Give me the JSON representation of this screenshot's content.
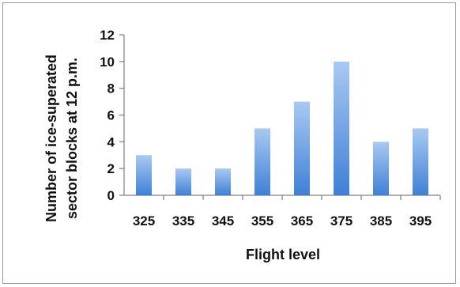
{
  "chart_data": {
    "type": "bar",
    "categories": [
      "325",
      "335",
      "345",
      "355",
      "365",
      "375",
      "385",
      "395"
    ],
    "values": [
      3,
      2,
      2,
      5,
      7,
      10,
      4,
      5
    ],
    "title": "",
    "xlabel": "Flight level",
    "ylabel_lines": [
      "Number of ice-superated",
      "sector blocks at 12 p.m."
    ],
    "ylim": [
      0,
      12
    ],
    "yticks": [
      "0",
      "2",
      "4",
      "6",
      "8",
      "10",
      "12"
    ],
    "grid": false,
    "legend": "none",
    "colors": {
      "bar_top": "#a9c9f2",
      "bar_bottom": "#3f80d6",
      "axis": "#7f7f7f"
    }
  }
}
